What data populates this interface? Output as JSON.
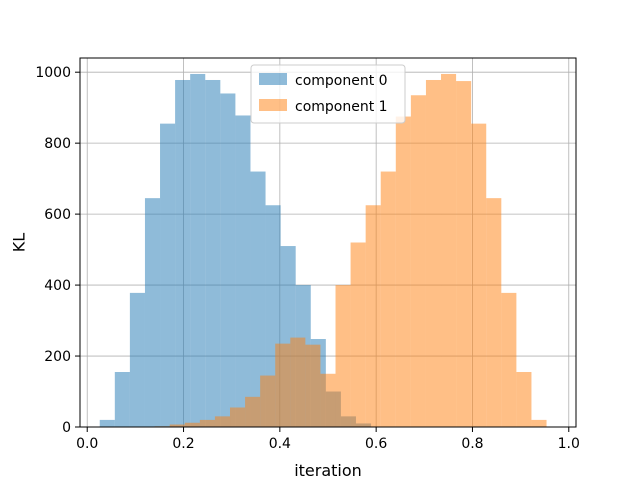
{
  "chart_data": {
    "type": "bar",
    "title": "",
    "xlabel": "iteration",
    "ylabel": "KL",
    "xlim": [
      -0.015,
      1.015
    ],
    "ylim": [
      0,
      1040
    ],
    "xticks": [
      0.0,
      0.2,
      0.4,
      0.6,
      0.8,
      1.0
    ],
    "xtick_labels": [
      "0.0",
      "0.2",
      "0.4",
      "0.6",
      "0.8",
      "1.0"
    ],
    "yticks": [
      0,
      200,
      400,
      600,
      800,
      1000
    ],
    "ytick_labels": [
      "0",
      "200",
      "400",
      "600",
      "800",
      "1000"
    ],
    "grid": true,
    "legend_position": "top-center",
    "series": [
      {
        "name": "component 0",
        "color": "#1f77b4",
        "opacity": 0.5,
        "bin_start": 0.026,
        "bin_width": 0.0313,
        "values": [
          20,
          155,
          378,
          645,
          855,
          978,
          995,
          978,
          940,
          878,
          720,
          625,
          510,
          400,
          248,
          100,
          30,
          10
        ]
      },
      {
        "name": "component 1",
        "color": "#ff7f0e",
        "opacity": 0.5,
        "bin_start": 0.14,
        "bin_width": 0.0313,
        "values": [
          2,
          7,
          12,
          20,
          30,
          55,
          85,
          145,
          235,
          252,
          232,
          150,
          400,
          520,
          625,
          720,
          875,
          935,
          978,
          995,
          975,
          855,
          645,
          378,
          155,
          20
        ]
      }
    ],
    "legend": [
      {
        "label": "component 0",
        "color": "#1f77b4"
      },
      {
        "label": "component 1",
        "color": "#ff7f0e"
      }
    ]
  }
}
